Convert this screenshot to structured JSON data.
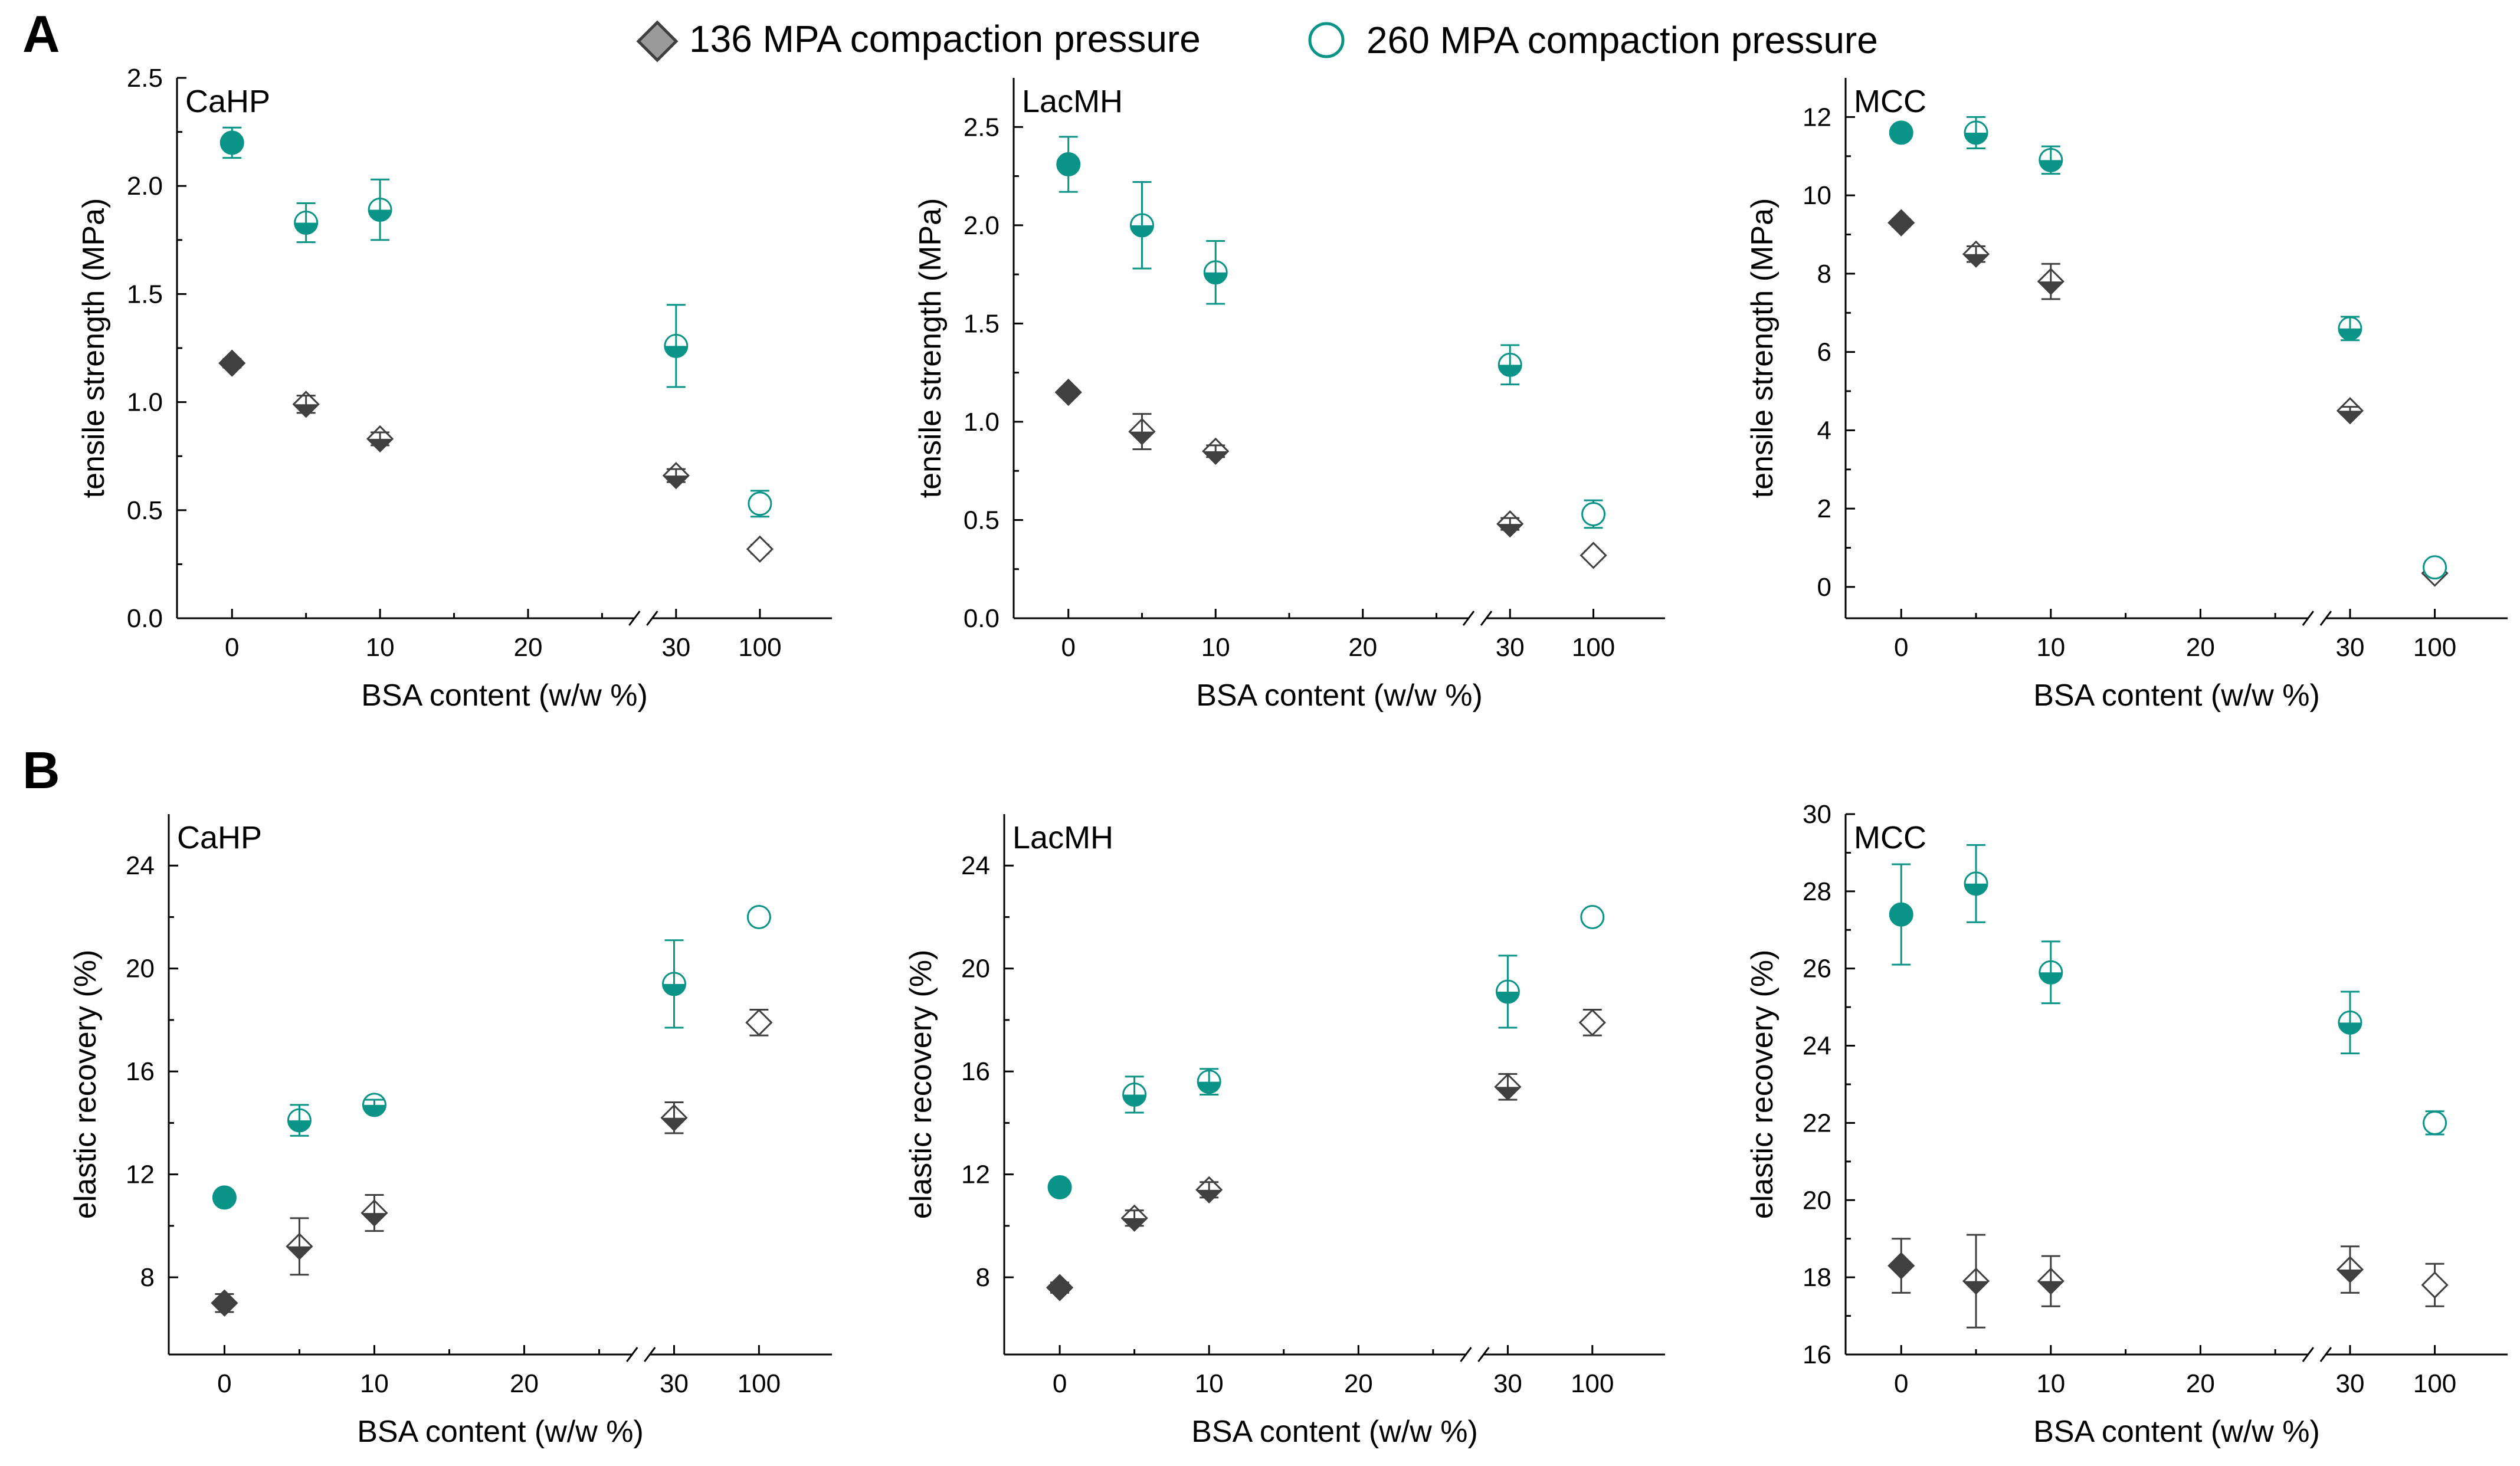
{
  "figure_labels": {
    "a": "A",
    "b": "B"
  },
  "legend": {
    "series1": {
      "label": "136 MPA compaction pressure",
      "color": "#404040",
      "marker": "diamond"
    },
    "series2": {
      "label": "260 MPA compaction pressure",
      "color": "#0a9488",
      "marker": "circle"
    }
  },
  "chart_data": [
    {
      "id": "A-CaHP",
      "type": "scatter",
      "title": "CaHP",
      "xlabel": "BSA content (w/w %)",
      "ylabel": "tensile strength (MPa)",
      "x_ticks": [
        0,
        10,
        20,
        30,
        100
      ],
      "ylim": [
        0,
        2.5
      ],
      "y_ticks": [
        0,
        0.5,
        1.0,
        1.5,
        2.0,
        2.5
      ],
      "y_tick_labels": [
        "0.0",
        "0.5",
        "1.0",
        "1.5",
        "2.0",
        "2.5"
      ],
      "series": [
        {
          "name": "136 MPA compaction pressure",
          "x": [
            0,
            5,
            10,
            30,
            100
          ],
          "y": [
            1.18,
            0.99,
            0.83,
            0.66,
            0.32
          ],
          "err": [
            0.02,
            0.04,
            0.03,
            0.03,
            0.02
          ]
        },
        {
          "name": "260 MPA compaction pressure",
          "x": [
            0,
            5,
            10,
            30,
            100
          ],
          "y": [
            2.2,
            1.83,
            1.89,
            1.26,
            0.53
          ],
          "err": [
            0.07,
            0.09,
            0.14,
            0.19,
            0.06
          ]
        }
      ]
    },
    {
      "id": "A-LacMH",
      "type": "scatter",
      "title": "LacMH",
      "xlabel": "BSA content (w/w %)",
      "ylabel": "tensile strength (MPa)",
      "x_ticks": [
        0,
        10,
        20,
        30,
        100
      ],
      "ylim": [
        0,
        2.75
      ],
      "y_ticks": [
        0,
        0.5,
        1.0,
        1.5,
        2.0,
        2.5
      ],
      "y_tick_labels": [
        "0.0",
        "0.5",
        "1.0",
        "1.5",
        "2.0",
        "2.5"
      ],
      "series": [
        {
          "name": "136 MPA compaction pressure",
          "x": [
            0,
            5,
            10,
            30,
            100
          ],
          "y": [
            1.15,
            0.95,
            0.85,
            0.48,
            0.32
          ],
          "err": [
            0.02,
            0.09,
            0.03,
            0.03,
            0.02
          ]
        },
        {
          "name": "260 MPA compaction pressure",
          "x": [
            0,
            5,
            10,
            30,
            100
          ],
          "y": [
            2.31,
            2.0,
            1.76,
            1.29,
            0.53
          ],
          "err": [
            0.14,
            0.22,
            0.16,
            0.1,
            0.07
          ]
        }
      ]
    },
    {
      "id": "A-MCC",
      "type": "scatter",
      "title": "MCC",
      "xlabel": "BSA content (w/w %)",
      "ylabel": "tensile strength (MPa)",
      "x_ticks": [
        0,
        10,
        20,
        30,
        100
      ],
      "ylim": [
        -0.8,
        13
      ],
      "y_ticks": [
        0,
        2,
        4,
        6,
        8,
        10,
        12
      ],
      "y_tick_labels": [
        "0",
        "2",
        "4",
        "6",
        "8",
        "10",
        "12"
      ],
      "series": [
        {
          "name": "136 MPA compaction pressure",
          "x": [
            0,
            5,
            10,
            30,
            100
          ],
          "y": [
            9.3,
            8.5,
            7.8,
            4.5,
            0.35
          ],
          "err": [
            0.1,
            0.2,
            0.45,
            0.1,
            0.05
          ]
        },
        {
          "name": "260 MPA compaction pressure",
          "x": [
            0,
            5,
            10,
            30,
            100
          ],
          "y": [
            11.6,
            11.6,
            10.9,
            6.6,
            0.5
          ],
          "err": [
            0.1,
            0.4,
            0.35,
            0.3,
            0.1
          ]
        }
      ]
    },
    {
      "id": "B-CaHP",
      "type": "scatter",
      "title": "CaHP",
      "xlabel": "BSA content (w/w %)",
      "ylabel": "elastic recovery (%)",
      "x_ticks": [
        0,
        10,
        20,
        30,
        100
      ],
      "ylim": [
        5,
        26
      ],
      "y_ticks": [
        8,
        12,
        16,
        20,
        24
      ],
      "y_tick_labels": [
        "8",
        "12",
        "16",
        "20",
        "24"
      ],
      "series": [
        {
          "name": "136 MPA compaction pressure",
          "x": [
            0,
            5,
            10,
            30,
            100
          ],
          "y": [
            7.0,
            9.2,
            10.5,
            14.2,
            17.9
          ],
          "err": [
            0.35,
            1.1,
            0.7,
            0.6,
            0.5
          ]
        },
        {
          "name": "260 MPA compaction pressure",
          "x": [
            0,
            5,
            10,
            30,
            100
          ],
          "y": [
            11.1,
            14.1,
            14.7,
            19.4,
            22.0
          ],
          "err": [
            0.1,
            0.6,
            0.2,
            1.7,
            0.1
          ]
        }
      ]
    },
    {
      "id": "B-LacMH",
      "type": "scatter",
      "title": "LacMH",
      "xlabel": "BSA content (w/w %)",
      "ylabel": "elastic recovery (%)",
      "x_ticks": [
        0,
        10,
        20,
        30,
        100
      ],
      "ylim": [
        5,
        26
      ],
      "y_ticks": [
        8,
        12,
        16,
        20,
        24
      ],
      "y_tick_labels": [
        "8",
        "12",
        "16",
        "20",
        "24"
      ],
      "series": [
        {
          "name": "136 MPA compaction pressure",
          "x": [
            0,
            5,
            10,
            30,
            100
          ],
          "y": [
            7.6,
            10.3,
            11.4,
            15.4,
            17.9
          ],
          "err": [
            0.2,
            0.3,
            0.3,
            0.5,
            0.5
          ]
        },
        {
          "name": "260 MPA compaction pressure",
          "x": [
            0,
            5,
            10,
            30,
            100
          ],
          "y": [
            11.5,
            15.1,
            15.6,
            19.1,
            22.0
          ],
          "err": [
            0.1,
            0.7,
            0.5,
            1.4,
            0.2
          ]
        }
      ]
    },
    {
      "id": "B-MCC",
      "type": "scatter",
      "title": "MCC",
      "xlabel": "BSA content (w/w %)",
      "ylabel": "elastic recovery (%)",
      "x_ticks": [
        0,
        10,
        20,
        30,
        100
      ],
      "ylim": [
        16,
        30
      ],
      "y_ticks": [
        16,
        18,
        20,
        22,
        24,
        26,
        28,
        30
      ],
      "y_tick_labels": [
        "16",
        "18",
        "20",
        "22",
        "24",
        "26",
        "28",
        "30"
      ],
      "series": [
        {
          "name": "136 MPA compaction pressure",
          "x": [
            0,
            5,
            10,
            30,
            100
          ],
          "y": [
            18.3,
            17.9,
            17.9,
            18.2,
            17.8
          ],
          "err": [
            0.7,
            1.2,
            0.65,
            0.6,
            0.55
          ]
        },
        {
          "name": "260 MPA compaction pressure",
          "x": [
            0,
            5,
            10,
            30,
            100
          ],
          "y": [
            27.4,
            28.2,
            25.9,
            24.6,
            22.0
          ],
          "err": [
            1.3,
            1.0,
            0.8,
            0.8,
            0.3
          ]
        }
      ]
    }
  ]
}
